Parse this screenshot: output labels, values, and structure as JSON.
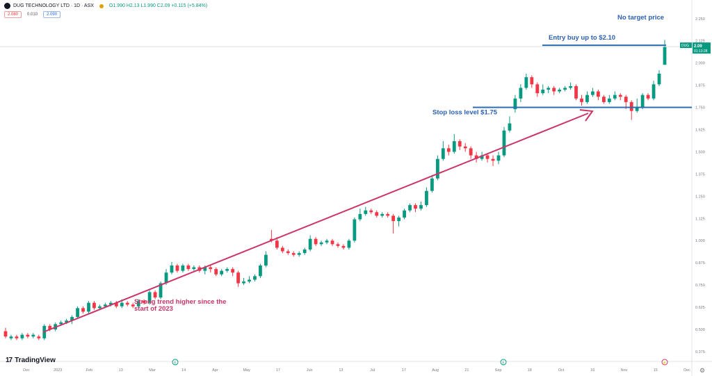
{
  "header": {
    "symbol": "DUG TECHNOLOGY LTD · 1D · ASX",
    "ohlc": "O1.990  H2.13  L1.990  C2.09  +0.115 (+5.84%)",
    "bid": "2.080",
    "spread": "0.010",
    "ask": "2.090"
  },
  "branding": {
    "logo_icon": "tradingview-logo-icon",
    "name": "TradingView"
  },
  "price_label": {
    "symbol": "DUG",
    "price": "2.09",
    "countdown": "01:13:28"
  },
  "colors": {
    "up": "#089981",
    "down": "#f23645",
    "level_line": "#2a6db0",
    "trend": "#cc3366",
    "annotation_blue": "#2a5fb0",
    "annotation_pink": "#cc3366"
  },
  "chart_data": {
    "type": "candlestick",
    "ylim": [
      0.32,
      2.3
    ],
    "y_ticks": [
      "2.250",
      "2.125",
      "2.000",
      "1.875",
      "1.750",
      "1.625",
      "1.500",
      "1.375",
      "1.250",
      "1.125",
      "1.000",
      "0.875",
      "0.750",
      "0.625",
      "0.500",
      "0.375"
    ],
    "x_ticks": [
      "Dec",
      "2023",
      "Feb",
      "13",
      "Mar",
      "14",
      "Apr",
      "May",
      "17",
      "Jun",
      "13",
      "Jul",
      "17",
      "Aug",
      "21",
      "Sep",
      "18",
      "Oct",
      "16",
      "Nov",
      "15",
      "Dec"
    ],
    "candles": [
      [
        0.49,
        0.46,
        0.51,
        0.45
      ],
      [
        0.45,
        0.46,
        0.47,
        0.44
      ],
      [
        0.46,
        0.45,
        0.47,
        0.44
      ],
      [
        0.45,
        0.47,
        0.48,
        0.44
      ],
      [
        0.47,
        0.46,
        0.48,
        0.45
      ],
      [
        0.46,
        0.47,
        0.48,
        0.45
      ],
      [
        0.46,
        0.45,
        0.47,
        0.44
      ],
      [
        0.45,
        0.52,
        0.53,
        0.44
      ],
      [
        0.52,
        0.5,
        0.53,
        0.49
      ],
      [
        0.5,
        0.53,
        0.54,
        0.49
      ],
      [
        0.53,
        0.54,
        0.55,
        0.52
      ],
      [
        0.54,
        0.55,
        0.56,
        0.53
      ],
      [
        0.55,
        0.57,
        0.58,
        0.53
      ],
      [
        0.57,
        0.62,
        0.63,
        0.56
      ],
      [
        0.62,
        0.6,
        0.63,
        0.59
      ],
      [
        0.6,
        0.65,
        0.66,
        0.59
      ],
      [
        0.65,
        0.62,
        0.66,
        0.61
      ],
      [
        0.62,
        0.63,
        0.64,
        0.61
      ],
      [
        0.63,
        0.64,
        0.65,
        0.62
      ],
      [
        0.64,
        0.65,
        0.66,
        0.63
      ],
      [
        0.65,
        0.63,
        0.66,
        0.62
      ],
      [
        0.63,
        0.65,
        0.67,
        0.62
      ],
      [
        0.65,
        0.64,
        0.66,
        0.63
      ],
      [
        0.64,
        0.63,
        0.65,
        0.62
      ],
      [
        0.63,
        0.66,
        0.67,
        0.62
      ],
      [
        0.66,
        0.65,
        0.67,
        0.64
      ],
      [
        0.65,
        0.71,
        0.72,
        0.64
      ],
      [
        0.71,
        0.68,
        0.72,
        0.67
      ],
      [
        0.68,
        0.76,
        0.77,
        0.67
      ],
      [
        0.76,
        0.82,
        0.84,
        0.75
      ],
      [
        0.82,
        0.86,
        0.88,
        0.81
      ],
      [
        0.86,
        0.83,
        0.87,
        0.82
      ],
      [
        0.83,
        0.86,
        0.87,
        0.82
      ],
      [
        0.86,
        0.84,
        0.87,
        0.83
      ],
      [
        0.84,
        0.85,
        0.86,
        0.83
      ],
      [
        0.85,
        0.83,
        0.86,
        0.82
      ],
      [
        0.83,
        0.85,
        0.86,
        0.81
      ],
      [
        0.85,
        0.84,
        0.86,
        0.82
      ],
      [
        0.84,
        0.81,
        0.85,
        0.8
      ],
      [
        0.81,
        0.83,
        0.84,
        0.8
      ],
      [
        0.83,
        0.84,
        0.85,
        0.82
      ],
      [
        0.84,
        0.82,
        0.85,
        0.8
      ],
      [
        0.82,
        0.76,
        0.83,
        0.74
      ],
      [
        0.76,
        0.77,
        0.79,
        0.75
      ],
      [
        0.77,
        0.78,
        0.8,
        0.76
      ],
      [
        0.78,
        0.8,
        0.81,
        0.77
      ],
      [
        0.8,
        0.86,
        0.87,
        0.79
      ],
      [
        0.86,
        0.92,
        0.94,
        0.85
      ],
      [
        1.01,
        1.0,
        1.06,
        0.99
      ],
      [
        1.0,
        0.96,
        1.02,
        0.95
      ],
      [
        0.96,
        0.94,
        0.97,
        0.93
      ],
      [
        0.94,
        0.93,
        0.95,
        0.92
      ],
      [
        0.93,
        0.92,
        0.94,
        0.91
      ],
      [
        0.92,
        0.93,
        0.94,
        0.91
      ],
      [
        0.93,
        0.95,
        0.96,
        0.92
      ],
      [
        0.95,
        1.01,
        1.03,
        0.94
      ],
      [
        1.01,
        0.98,
        1.02,
        0.97
      ],
      [
        0.98,
        0.99,
        1.0,
        0.97
      ],
      [
        0.99,
        1.0,
        1.01,
        0.98
      ],
      [
        1.0,
        0.98,
        1.01,
        0.97
      ],
      [
        0.98,
        0.97,
        0.99,
        0.96
      ],
      [
        0.97,
        0.96,
        0.98,
        0.95
      ],
      [
        0.96,
        1.0,
        1.01,
        0.95
      ],
      [
        1.0,
        1.12,
        1.13,
        0.99
      ],
      [
        1.12,
        1.15,
        1.18,
        1.11
      ],
      [
        1.15,
        1.17,
        1.19,
        1.14
      ],
      [
        1.17,
        1.16,
        1.18,
        1.15
      ],
      [
        1.16,
        1.14,
        1.17,
        1.13
      ],
      [
        1.14,
        1.15,
        1.16,
        1.13
      ],
      [
        1.15,
        1.14,
        1.16,
        1.13
      ],
      [
        1.14,
        1.11,
        1.15,
        1.04
      ],
      [
        1.11,
        1.13,
        1.14,
        1.08
      ],
      [
        1.13,
        1.17,
        1.18,
        1.12
      ],
      [
        1.17,
        1.2,
        1.21,
        1.16
      ],
      [
        1.2,
        1.18,
        1.21,
        1.16
      ],
      [
        1.18,
        1.2,
        1.22,
        1.17
      ],
      [
        1.2,
        1.28,
        1.3,
        1.19
      ],
      [
        1.28,
        1.35,
        1.37,
        1.27
      ],
      [
        1.35,
        1.46,
        1.48,
        1.34
      ],
      [
        1.46,
        1.52,
        1.56,
        1.45
      ],
      [
        1.52,
        1.5,
        1.54,
        1.48
      ],
      [
        1.5,
        1.56,
        1.6,
        1.49
      ],
      [
        1.56,
        1.53,
        1.57,
        1.51
      ],
      [
        1.53,
        1.52,
        1.55,
        1.5
      ],
      [
        1.52,
        1.48,
        1.53,
        1.46
      ],
      [
        1.48,
        1.46,
        1.5,
        1.44
      ],
      [
        1.46,
        1.48,
        1.5,
        1.45
      ],
      [
        1.48,
        1.46,
        1.49,
        1.44
      ],
      [
        1.46,
        1.45,
        1.48,
        1.42
      ],
      [
        1.45,
        1.48,
        1.5,
        1.43
      ],
      [
        1.48,
        1.62,
        1.64,
        1.47
      ],
      [
        1.62,
        1.66,
        1.7,
        1.61
      ],
      [
        1.74,
        1.8,
        1.82,
        1.72
      ],
      [
        1.8,
        1.86,
        1.88,
        1.78
      ],
      [
        1.86,
        1.92,
        1.94,
        1.85
      ],
      [
        1.92,
        1.88,
        1.93,
        1.86
      ],
      [
        1.88,
        1.83,
        1.89,
        1.81
      ],
      [
        1.83,
        1.85,
        1.88,
        1.82
      ],
      [
        1.85,
        1.86,
        1.87,
        1.83
      ],
      [
        1.86,
        1.84,
        1.87,
        1.82
      ],
      [
        1.84,
        1.85,
        1.86,
        1.83
      ],
      [
        1.85,
        1.86,
        1.87,
        1.84
      ],
      [
        1.86,
        1.87,
        1.89,
        1.85
      ],
      [
        1.87,
        1.8,
        1.88,
        1.79
      ],
      [
        1.8,
        1.78,
        1.82,
        1.76
      ],
      [
        1.78,
        1.82,
        1.84,
        1.77
      ],
      [
        1.82,
        1.84,
        1.86,
        1.81
      ],
      [
        1.84,
        1.81,
        1.85,
        1.79
      ],
      [
        1.81,
        1.78,
        1.82,
        1.77
      ],
      [
        1.78,
        1.8,
        1.82,
        1.77
      ],
      [
        1.8,
        1.82,
        1.84,
        1.79
      ],
      [
        1.82,
        1.81,
        1.83,
        1.79
      ],
      [
        1.81,
        1.78,
        1.82,
        1.74
      ],
      [
        1.78,
        1.73,
        1.79,
        1.68
      ],
      [
        1.73,
        1.75,
        1.8,
        1.72
      ],
      [
        1.75,
        1.82,
        1.83,
        1.74
      ],
      [
        1.82,
        1.8,
        1.83,
        1.79
      ],
      [
        1.8,
        1.88,
        1.9,
        1.79
      ],
      [
        1.88,
        1.94,
        1.96,
        1.87
      ],
      [
        1.99,
        2.09,
        2.13,
        1.99
      ]
    ],
    "lines": [
      {
        "label": "Entry buy up to $2.10",
        "value": 2.1
      },
      {
        "label": "Stop loss level $1.75",
        "value": 1.75
      }
    ],
    "annotations": [
      {
        "text": "No target price"
      },
      {
        "text_lines": [
          "Strong trend higher since the",
          "start of 2023"
        ]
      }
    ],
    "trend_arrow": {
      "from": {
        "x": "Dec",
        "y": 0.47
      },
      "to": {
        "x": "Oct",
        "y": 1.69
      }
    }
  }
}
